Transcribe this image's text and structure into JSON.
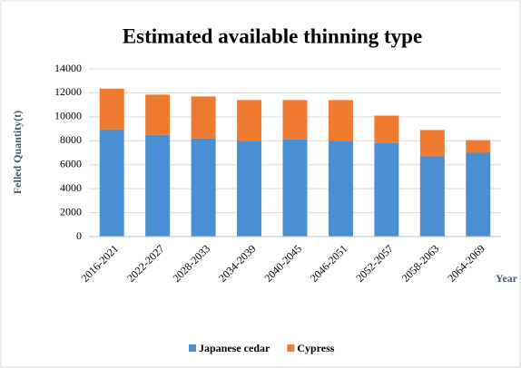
{
  "chart_data": {
    "type": "stacked_bar",
    "title": "Estimated available thinning type",
    "y_label": "Felled Quantity(t)",
    "x_label": "Year",
    "categories": [
      "2016-2021",
      "2022-2027",
      "2028-2033",
      "2034-2039",
      "2040-2045",
      "2046-2051",
      "2052-2057",
      "2058-2063",
      "2064-2069"
    ],
    "series": [
      {
        "name": "Japanese cedar",
        "color": "#4a8fd4",
        "values": [
          8950,
          8500,
          8200,
          8000,
          8100,
          8000,
          7800,
          6700,
          7000
        ]
      },
      {
        "name": "Cypress",
        "color": "#ee7b30",
        "values": [
          3400,
          3350,
          3500,
          3400,
          3300,
          3400,
          2300,
          2200,
          1050
        ]
      }
    ],
    "ylim": [
      0,
      14000
    ],
    "yticks": [
      0,
      2000,
      4000,
      6000,
      8000,
      10000,
      12000,
      14000
    ],
    "grid": true,
    "legend": "bottom"
  }
}
